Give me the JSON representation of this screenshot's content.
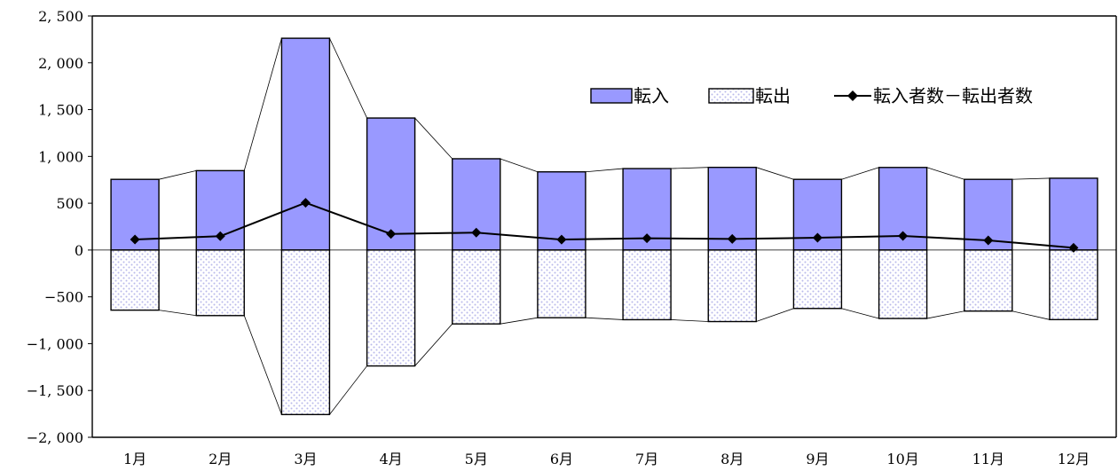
{
  "chart_data": {
    "type": "bar",
    "categories": [
      "1月",
      "2月",
      "3月",
      "4月",
      "5月",
      "6月",
      "7月",
      "8月",
      "9月",
      "10月",
      "11月",
      "12月"
    ],
    "series": [
      {
        "name": "転入",
        "kind": "bar",
        "color": "#9999ff",
        "values": [
          755,
          848,
          2262,
          1410,
          975,
          835,
          870,
          883,
          755,
          882,
          755,
          767
        ]
      },
      {
        "name": "転出",
        "kind": "bar",
        "pattern": "dotted",
        "color": "#c8c8f0",
        "values": [
          -642,
          -700,
          -1757,
          -1238,
          -789,
          -723,
          -744,
          -764,
          -624,
          -731,
          -652,
          -743
        ]
      },
      {
        "name": "転入者数－転出者数",
        "kind": "line",
        "marker": "diamond",
        "color": "#000000",
        "values": [
          113,
          148,
          505,
          172,
          186,
          112,
          126,
          119,
          131,
          151,
          103,
          24
        ]
      }
    ],
    "yticks": [
      "2, 500",
      "2, 000",
      "1, 500",
      "1, 000",
      "500",
      "0",
      "−500",
      "−1, 000",
      "−1, 500",
      "−2, 000"
    ],
    "ylim": [
      -2000,
      2500
    ],
    "ytick_step": 500,
    "grid": false,
    "connector_lines": true,
    "legend": {
      "position": "top-right"
    }
  }
}
